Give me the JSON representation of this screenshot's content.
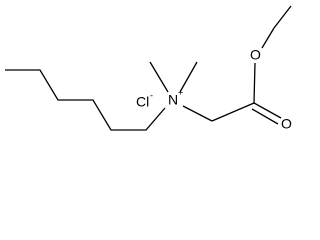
{
  "atoms": [
    {
      "label": "N",
      "charge": "+"
    },
    {
      "label": "Cl",
      "charge": "-"
    },
    {
      "label": "O"
    },
    {
      "label": "O"
    }
  ]
}
